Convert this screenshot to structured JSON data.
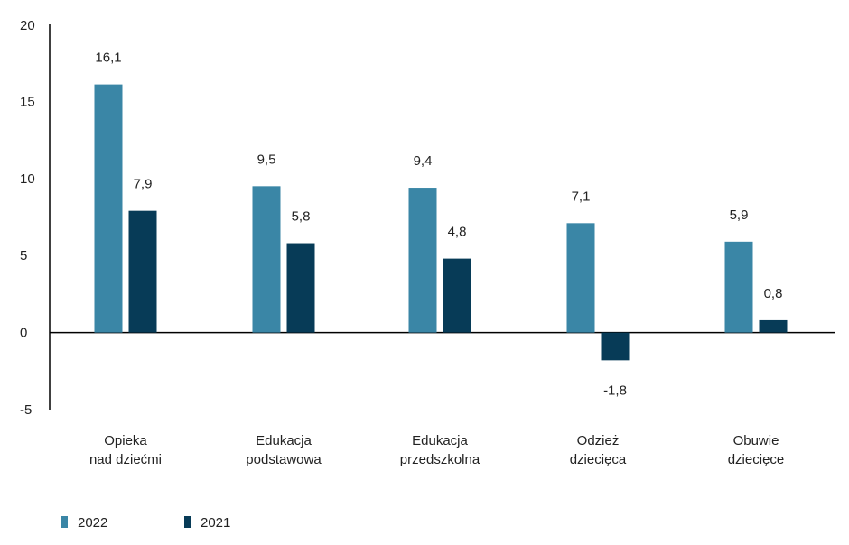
{
  "chart_data": {
    "type": "bar",
    "categories": [
      [
        "Opieka",
        "nad dziećmi"
      ],
      [
        "Edukacja",
        "podstawowa"
      ],
      [
        "Edukacja",
        "przedszkolna"
      ],
      [
        "Odzież",
        "dziecięca"
      ],
      [
        "Obuwie",
        "dziecięce"
      ]
    ],
    "series": [
      {
        "name": "2022",
        "color": "#3a86a6",
        "values": [
          16.1,
          9.5,
          9.4,
          7.1,
          5.9
        ],
        "labels": [
          "16,1",
          "9,5",
          "9,4",
          "7,1",
          "5,9"
        ]
      },
      {
        "name": "2021",
        "color": "#073b57",
        "values": [
          7.9,
          5.8,
          4.8,
          -1.8,
          0.8
        ],
        "labels": [
          "7,9",
          "5,8",
          "4,8",
          "-1,8",
          "0,8"
        ]
      }
    ],
    "ylim": [
      -5,
      20
    ],
    "yticks": [
      20,
      15,
      10,
      5,
      0,
      -5
    ],
    "legend_position": "bottom-left",
    "grid": false
  }
}
